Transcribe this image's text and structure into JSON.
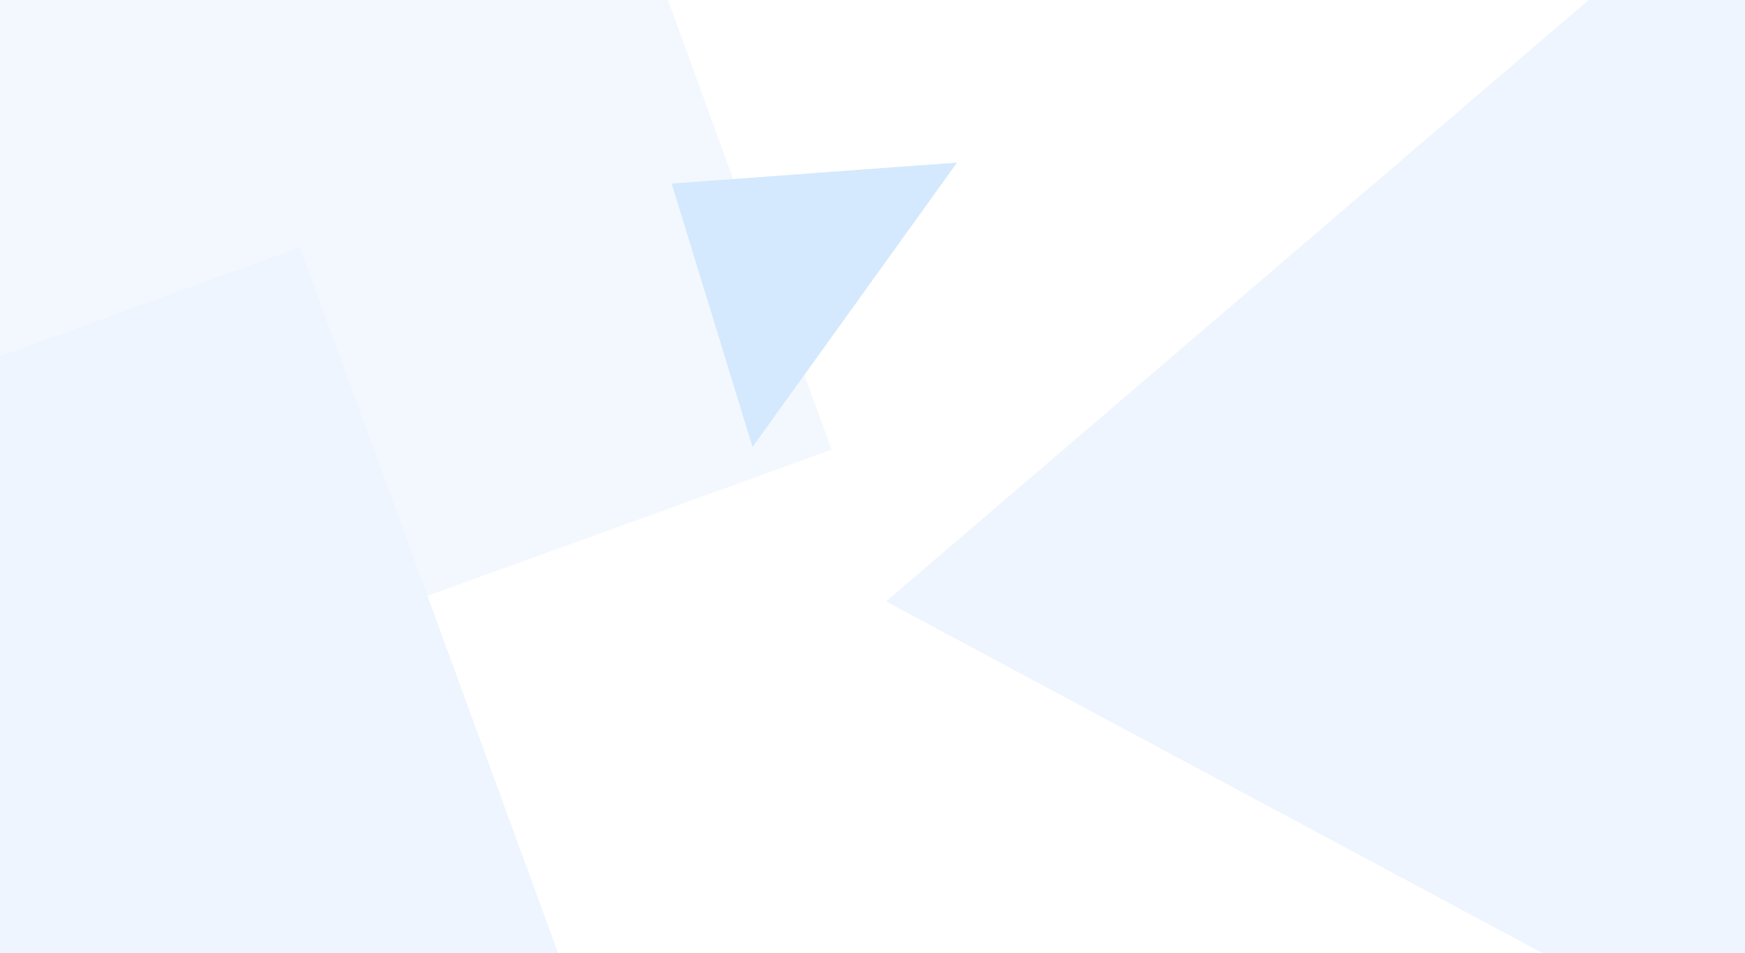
{
  "background": {
    "color": "#ffffff",
    "shapes": [
      {
        "name": "upper-left-panel-shape",
        "fill": "#f3f8fe"
      },
      {
        "name": "lower-left-panel-shape",
        "fill": "#eef5fe"
      },
      {
        "name": "right-chevron-shape",
        "fill": "#eef5fe"
      },
      {
        "name": "accent-triangle-shape",
        "fill": "#d4e9fd"
      }
    ]
  }
}
